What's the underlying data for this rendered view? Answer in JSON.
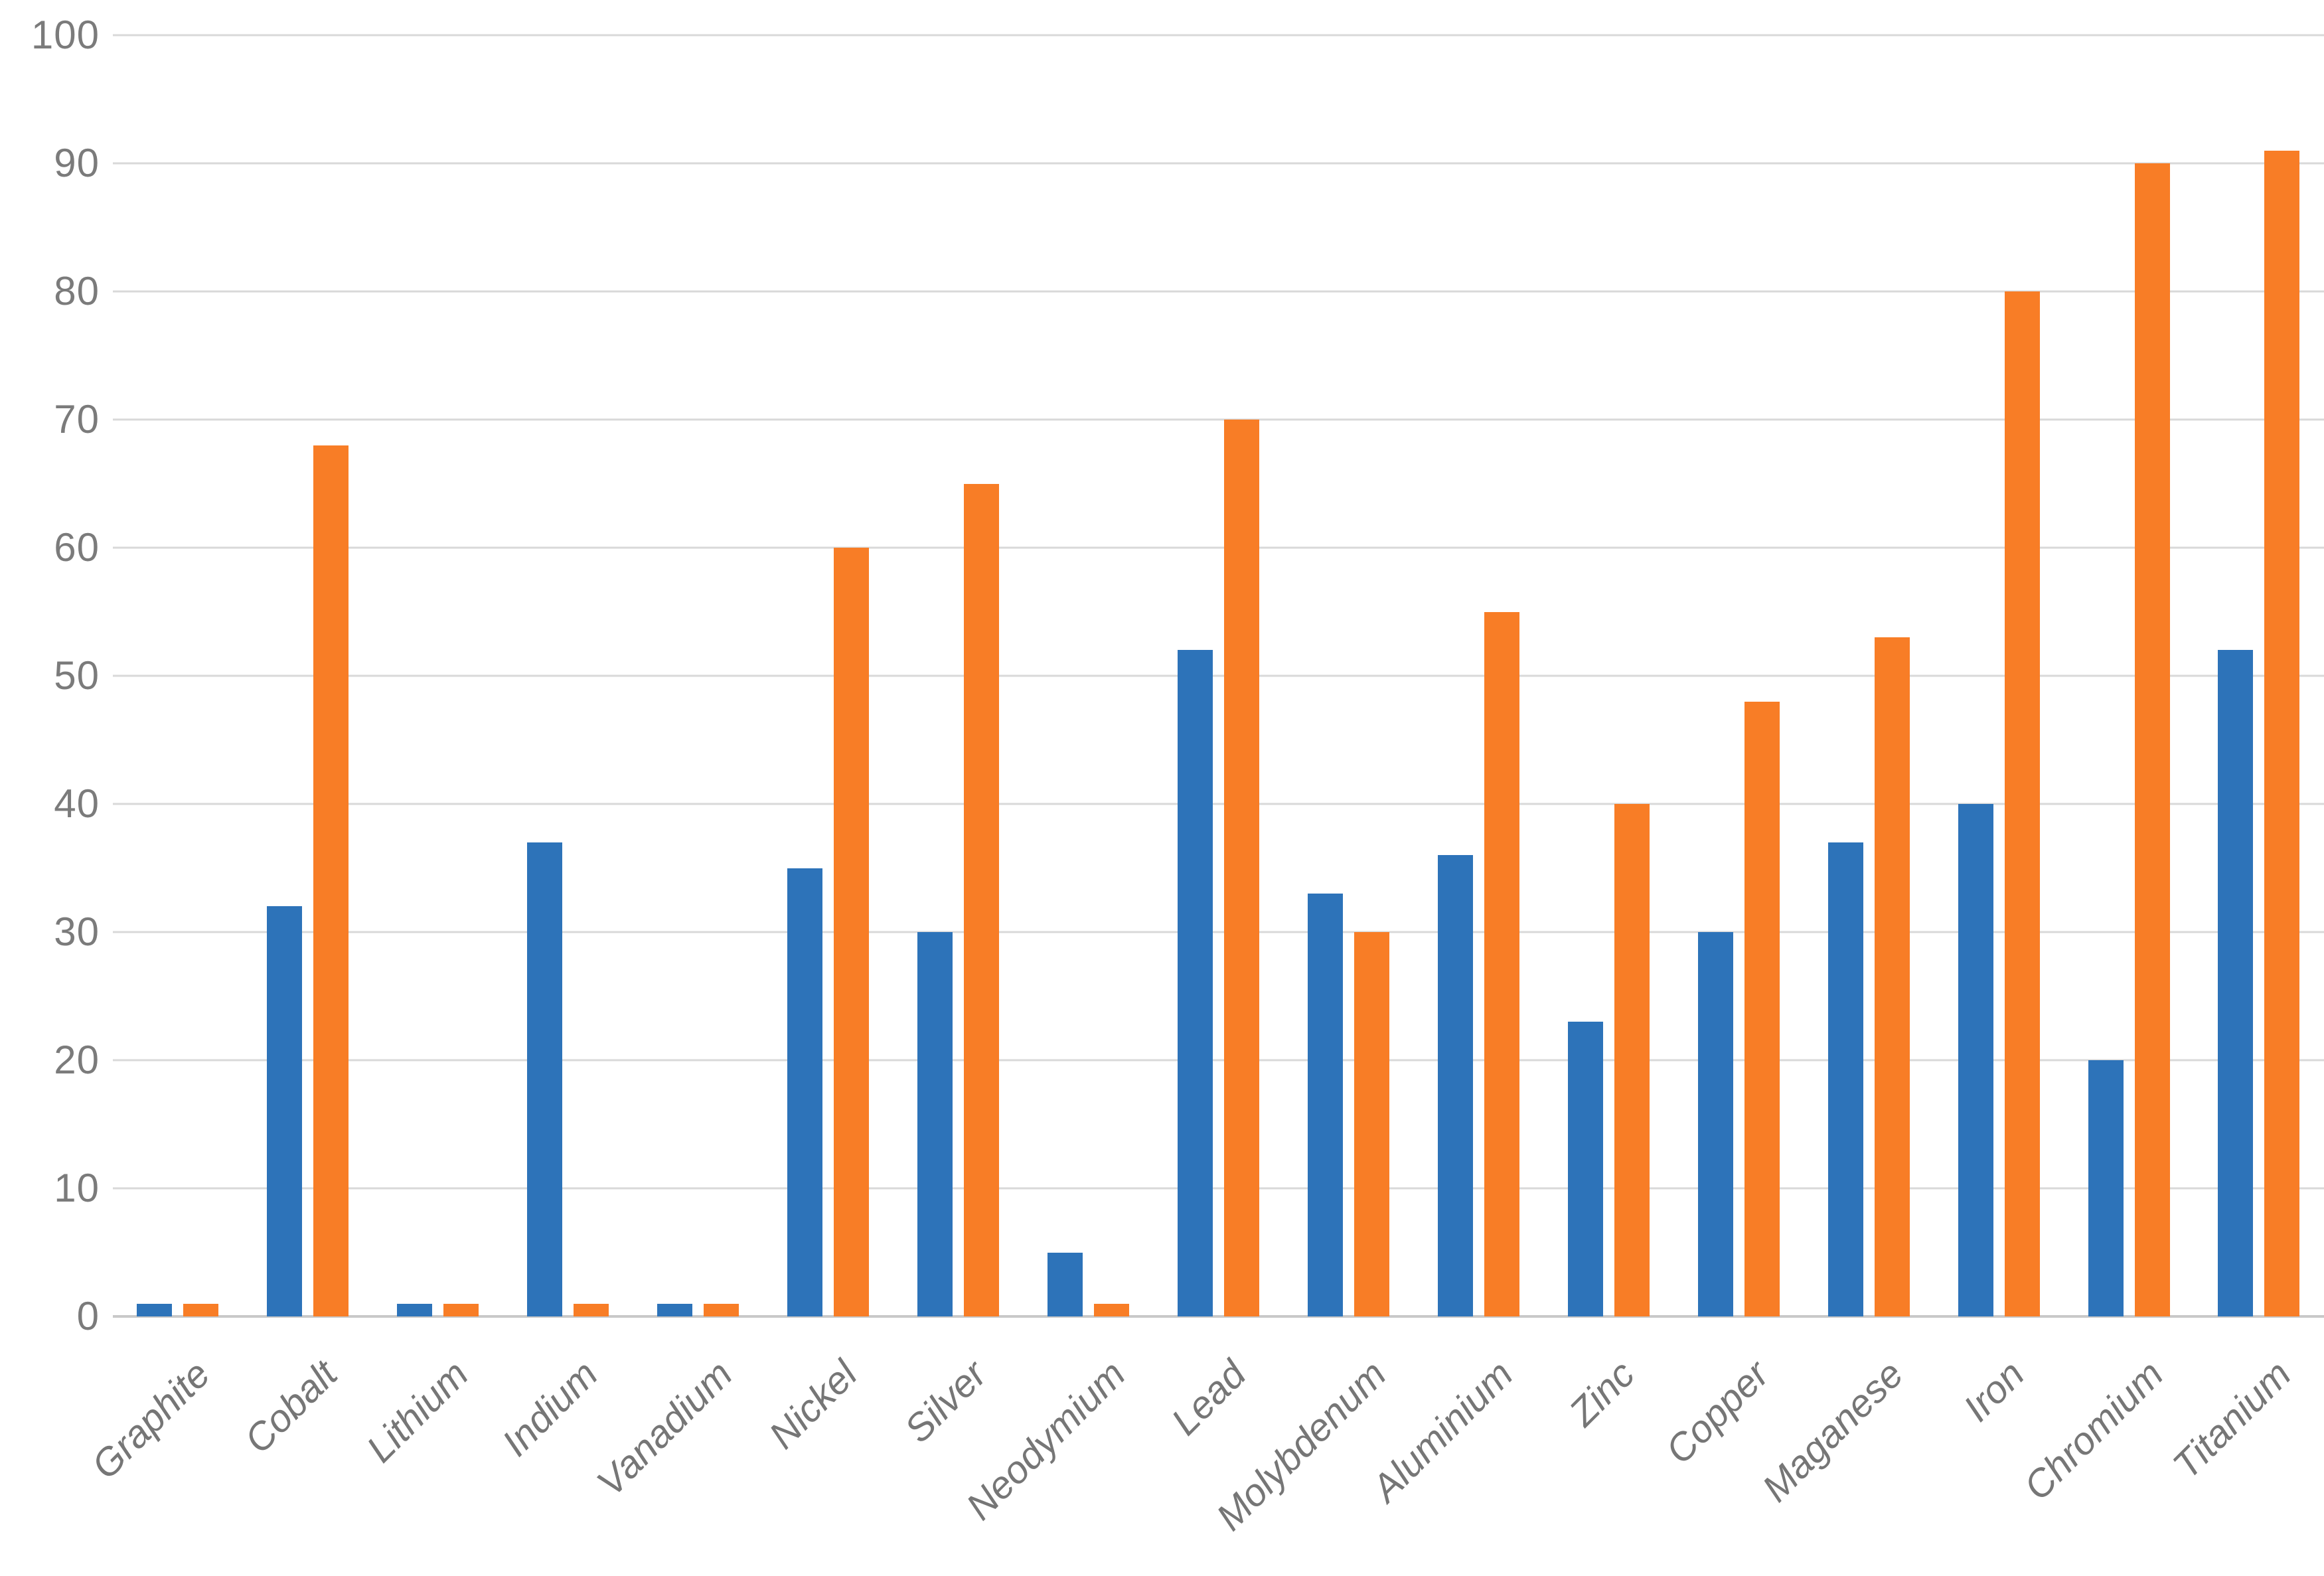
{
  "chart_data": {
    "type": "bar",
    "title": "",
    "xlabel": "",
    "ylabel": "",
    "ylim": [
      0,
      100
    ],
    "ytick_step": 10,
    "ytick_labels": [
      "100",
      "90",
      "80",
      "70",
      "60",
      "50",
      "40",
      "30",
      "20",
      "10",
      "0"
    ],
    "grid": true,
    "legend": false,
    "categories": [
      "Graphite",
      "Cobalt",
      "Lithium",
      "Indium",
      "Vanadium",
      "Nickel",
      "Silver",
      "Neodymium",
      "Lead",
      "Molybdenum",
      "Aluminium",
      "Zinc",
      "Copper",
      "Maganese",
      "Iron",
      "Chromium",
      "Titanium"
    ],
    "series": [
      {
        "name": "blue-series",
        "color": "#2d73b9",
        "values": [
          1,
          32,
          1,
          37,
          1,
          35,
          30,
          5,
          52,
          33,
          36,
          23,
          30,
          37,
          40,
          20,
          52
        ]
      },
      {
        "name": "orange-series",
        "color": "#f87d26",
        "values": [
          1,
          68,
          1,
          1,
          1,
          60,
          65,
          1,
          70,
          30,
          55,
          40,
          48,
          53,
          80,
          90,
          91
        ]
      }
    ],
    "colors": {
      "gridline": "#d9d9d9",
      "axis_line": "#c9c9c9",
      "tick_label": "#7b7b7b",
      "category_label": "#767676"
    }
  }
}
